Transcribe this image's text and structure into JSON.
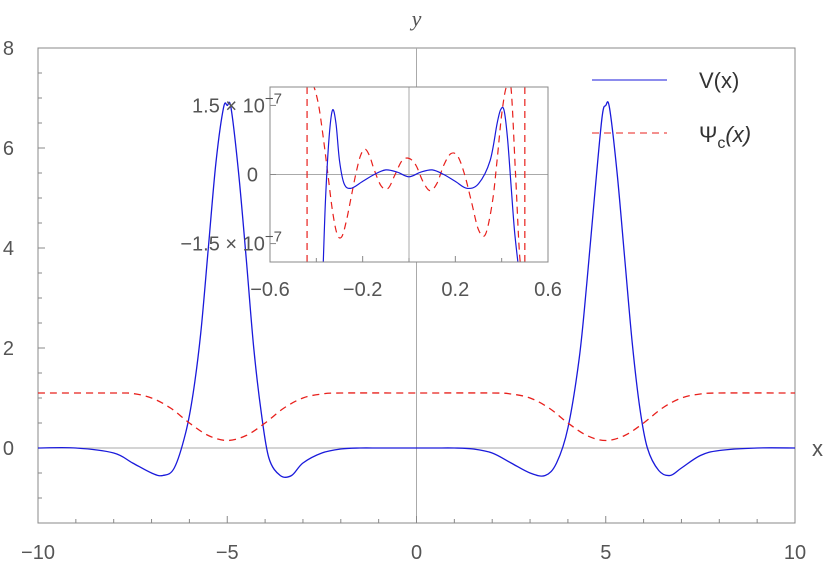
{
  "chart_data": [
    {
      "type": "line",
      "title": "",
      "xlabel": "x",
      "ylabel": "y",
      "xlim": [
        -10,
        10
      ],
      "ylim": [
        -1.5,
        8
      ],
      "grid": false,
      "legend_placement": "top-right",
      "x_ticks": [
        -10,
        -5,
        0,
        5,
        10
      ],
      "x_tick_labels": [
        "−10",
        "−5",
        "0",
        "5",
        "10"
      ],
      "y_ticks": [
        0,
        2,
        4,
        6,
        8
      ],
      "y_tick_labels": [
        "0",
        "2",
        "4",
        "6",
        "8"
      ],
      "series": [
        {
          "name": "V(x)",
          "color": "#1a1adb",
          "style": "solid",
          "x": [
            -10,
            -9,
            -8,
            -7.5,
            -7,
            -6.7,
            -6.4,
            -6.1,
            -5.9,
            -5.7,
            -5.5,
            -5.3,
            -5.1,
            -5.0,
            -4.9,
            -4.7,
            -4.5,
            -4.3,
            -4.1,
            -3.9,
            -3.6,
            -3.3,
            -3.0,
            -2.5,
            -2,
            -1.5,
            -1,
            -0.5,
            0,
            0.5,
            1,
            1.5,
            2,
            2.5,
            3.0,
            3.4,
            3.7,
            4.0,
            4.3,
            4.5,
            4.7,
            4.9,
            5.0,
            5.1,
            5.3,
            5.5,
            5.7,
            5.9,
            6.1,
            6.4,
            6.7,
            7.0,
            7.5,
            8,
            9,
            10
          ],
          "y": [
            0,
            0,
            -0.1,
            -0.3,
            -0.5,
            -0.55,
            -0.4,
            0.3,
            1.1,
            2.3,
            4.0,
            5.7,
            6.8,
            6.85,
            6.8,
            5.5,
            3.8,
            2.0,
            0.7,
            -0.2,
            -0.55,
            -0.55,
            -0.3,
            -0.1,
            -0.02,
            0,
            0,
            0,
            0,
            0,
            0,
            -0.02,
            -0.1,
            -0.3,
            -0.5,
            -0.55,
            -0.3,
            0.4,
            1.8,
            3.3,
            5.0,
            6.6,
            6.85,
            6.8,
            5.5,
            3.8,
            2.1,
            0.8,
            0.0,
            -0.45,
            -0.55,
            -0.4,
            -0.15,
            -0.05,
            0,
            0
          ]
        },
        {
          "name": "Ψc(x)",
          "color": "#e8201c",
          "style": "dashed",
          "x": [
            -10,
            -8,
            -7.5,
            -7,
            -6.5,
            -6,
            -5.5,
            -5.0,
            -4.5,
            -4,
            -3.5,
            -3,
            -2.5,
            -2,
            0,
            2,
            2.5,
            3,
            3.5,
            4,
            4.5,
            5.0,
            5.5,
            6,
            6.5,
            7,
            7.5,
            8,
            10
          ],
          "y": [
            1.1,
            1.1,
            1.09,
            1.0,
            0.8,
            0.5,
            0.25,
            0.15,
            0.25,
            0.5,
            0.8,
            1.0,
            1.08,
            1.1,
            1.1,
            1.1,
            1.08,
            1.0,
            0.8,
            0.5,
            0.25,
            0.15,
            0.25,
            0.5,
            0.8,
            1.0,
            1.08,
            1.1,
            1.1
          ]
        }
      ]
    },
    {
      "type": "line",
      "title": "",
      "xlabel": "",
      "ylabel": "",
      "xlim": [
        -0.6,
        0.6
      ],
      "ylim": [
        -1.9e-07,
        1.9e-07
      ],
      "grid": false,
      "x_ticks": [
        -0.6,
        -0.2,
        0.2,
        0.6
      ],
      "x_tick_labels": [
        "−0.6",
        "−0.2",
        "0.2",
        "0.6"
      ],
      "y_ticks": [
        -1.5e-07,
        0,
        1.5e-07
      ],
      "y_tick_labels": [
        "−1.5 × 10",
        "0",
        "1.5 × 10"
      ],
      "y_tick_exponent": "−7",
      "series": [
        {
          "name": "V(x)",
          "color": "#1a1adb",
          "style": "solid",
          "x": [
            -0.37,
            -0.36,
            -0.345,
            -0.33,
            -0.315,
            -0.3,
            -0.28,
            -0.25,
            -0.2,
            -0.15,
            -0.1,
            -0.05,
            0,
            0.05,
            0.1,
            0.15,
            0.2,
            0.25,
            0.3,
            0.35,
            0.38,
            0.395,
            0.41,
            0.425,
            0.44,
            0.455,
            0.47
          ],
          "y": [
            -1.9e-07,
            -5e-08,
            8e-08,
            1.4e-07,
            1.1e-07,
            3e-08,
            -2e-08,
            -3e-08,
            -1.5e-08,
            0.0,
            1e-08,
            5e-09,
            -5e-09,
            5e-09,
            1e-08,
            0.0,
            -1.5e-08,
            -3e-08,
            -2e-08,
            3e-08,
            1.1e-07,
            1.4e-07,
            1.4e-07,
            8e-08,
            -2e-08,
            -1.2e-07,
            -1.9e-07
          ]
        },
        {
          "name": "Ψc(x)",
          "color": "#e8201c",
          "style": "dashed",
          "x": [
            -0.42,
            -0.41,
            -0.39,
            -0.37,
            -0.35,
            -0.33,
            -0.31,
            -0.29,
            -0.27,
            -0.25,
            -0.23,
            -0.21,
            -0.19,
            -0.17,
            -0.15,
            -0.12,
            -0.09,
            -0.06,
            -0.03,
            0,
            0.03,
            0.06,
            0.09,
            0.12,
            0.15,
            0.18,
            0.21,
            0.24,
            0.27,
            0.3,
            0.33,
            0.36,
            0.38,
            0.4,
            0.42,
            0.44,
            0.46,
            0.48,
            0.5,
            0.51
          ],
          "y": [
            1.9e-07,
            1.9e-07,
            1.5e-07,
            8e-08,
            0.0,
            -8e-08,
            -1.3e-07,
            -1.35e-07,
            -1e-07,
            -5e-08,
            0.0,
            4e-08,
            5.5e-08,
            4e-08,
            1e-08,
            -2.5e-08,
            -3e-08,
            0.0,
            3e-08,
            3.5e-08,
            2e-08,
            -1.5e-08,
            -3.5e-08,
            -2e-08,
            2e-08,
            4.5e-08,
            4e-08,
            0.0,
            -6e-08,
            -1.2e-07,
            -1.3e-07,
            -6e-08,
            3e-08,
            1.3e-07,
            1.9e-07,
            1.9e-07,
            0.0,
            -1.9e-07,
            -1.9e-07,
            -1.9e-07
          ]
        }
      ],
      "extra_vertical_dashed_lines": [
        -0.44,
        0.5
      ]
    }
  ],
  "legend": {
    "v_label": "V(x)",
    "psi_label_main": "Ψ",
    "psi_label_sub": "c",
    "psi_label_tail": "(x)"
  },
  "axes": {
    "x_title": "x",
    "y_title": "y",
    "inset_exp": "−7"
  }
}
